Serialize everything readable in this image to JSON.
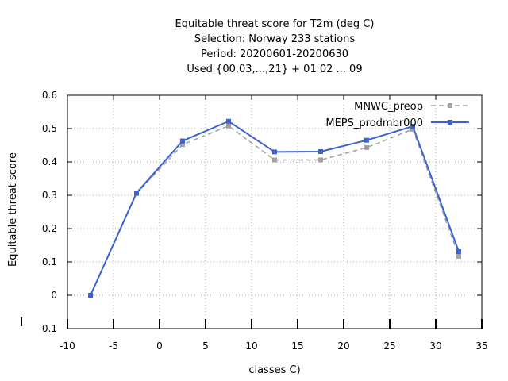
{
  "chart_data": {
    "type": "line",
    "title_lines": [
      "Equitable threat score  for T2m (deg C)",
      "Selection: Norway    233 stations",
      "Period: 20200601-20200630",
      "Used {00,03,...,21} + 01 02 ... 09"
    ],
    "xlabel": "classes C)",
    "ylabel": "Equitable threat score",
    "xlim": [
      -10,
      35
    ],
    "ylim": [
      -0.1,
      0.6
    ],
    "x_ticks": [
      -10,
      -5,
      0,
      5,
      10,
      15,
      20,
      25,
      30,
      35
    ],
    "y_ticks": [
      -0.1,
      0,
      0.1,
      0.2,
      0.3,
      0.4,
      0.5,
      0.6
    ],
    "x_tick_labels": [
      "-10",
      "-5",
      "0",
      "5",
      "10",
      "15",
      "20",
      "25",
      "30",
      "35"
    ],
    "y_tick_labels": [
      "-0.1",
      "0",
      "0.1",
      "0.2",
      "0.3",
      "0.4",
      "0.5",
      "0.6"
    ],
    "grid": true,
    "legend_position": "top-right",
    "series": [
      {
        "name": "MNWC_preop",
        "color": "#a0a0a0",
        "dashed": true,
        "x": [
          -7.5,
          -2.5,
          2.5,
          7.5,
          12.5,
          17.5,
          22.5,
          27.5,
          32.5
        ],
        "y": [
          0.0,
          0.305,
          0.452,
          0.508,
          0.406,
          0.406,
          0.443,
          0.498,
          0.117
        ]
      },
      {
        "name": "MEPS_prodmbr000",
        "color": "#3b62d1",
        "dashed": false,
        "x": [
          -7.5,
          -2.5,
          2.5,
          7.5,
          12.5,
          17.5,
          22.5,
          27.5,
          32.5
        ],
        "y": [
          0.0,
          0.307,
          0.463,
          0.522,
          0.43,
          0.431,
          0.465,
          0.507,
          0.131
        ]
      }
    ]
  }
}
